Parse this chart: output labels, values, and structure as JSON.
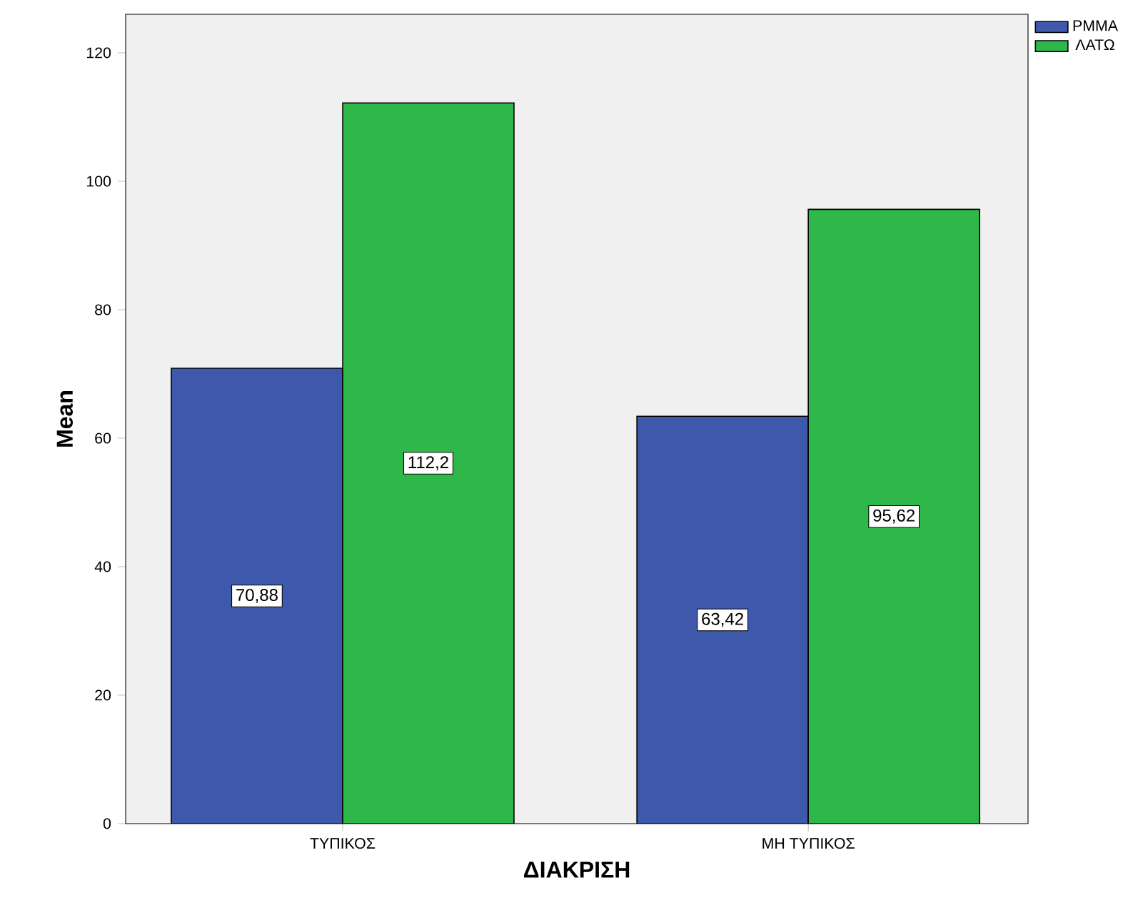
{
  "chart_data": {
    "type": "bar",
    "xlabel": "ΔΙΑΚΡΙΣΗ",
    "ylabel": "Mean",
    "categories": [
      "ΤΥΠΙΚΟΣ",
      "ΜΗ ΤΥΠΙΚΟΣ"
    ],
    "series": [
      {
        "name": "PMMA",
        "color": "#3e58ac",
        "values": [
          70.88,
          63.42
        ],
        "value_labels": [
          "70,88",
          "63,42"
        ]
      },
      {
        "name": "ΛΑΤΩ",
        "color": "#2eb84a",
        "values": [
          112.2,
          95.62
        ],
        "value_labels": [
          "112,2",
          "95,62"
        ]
      }
    ],
    "ylim": [
      0,
      126
    ],
    "yticks": [
      0,
      20,
      40,
      60,
      80,
      100,
      120
    ],
    "grid": false,
    "legend": "top right"
  }
}
